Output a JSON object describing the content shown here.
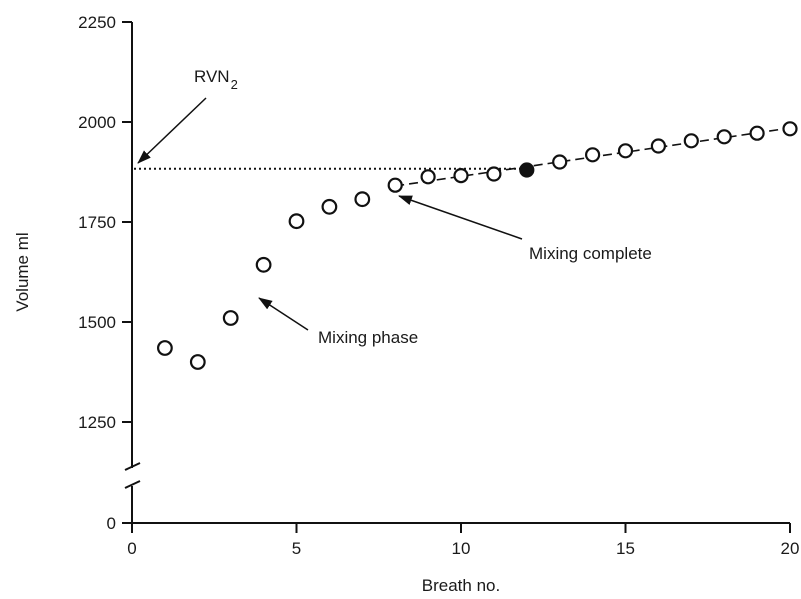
{
  "chart_data": {
    "type": "scatter",
    "title": "",
    "xlabel": "Breath no.",
    "ylabel": "Volume  ml",
    "xlim": [
      0,
      20
    ],
    "ylim_broken": {
      "bottom": 0,
      "top": [
        1150,
        2250
      ]
    },
    "x_ticks": [
      0,
      5,
      10,
      15,
      20
    ],
    "y_ticks": [
      0,
      1250,
      1500,
      1750,
      2000,
      2250
    ],
    "grid": false,
    "series": [
      {
        "marker": "open-circle",
        "x": [
          1,
          2,
          3,
          4,
          5,
          6,
          7,
          8,
          9,
          10,
          11,
          12,
          13,
          14,
          15,
          16,
          17,
          18,
          19,
          20
        ],
        "y": [
          1435,
          1400,
          1510,
          1643,
          1752,
          1788,
          1807,
          1842,
          1863,
          1866,
          1870,
          1880,
          1900,
          1918,
          1928,
          1940,
          1953,
          1963,
          1972,
          1983
        ],
        "filled_at_x": 12
      }
    ],
    "trend_line": {
      "style": "dashed",
      "x": [
        8,
        20
      ],
      "y": [
        1840,
        1985
      ]
    },
    "reference_line": {
      "style": "dotted",
      "y": 1883,
      "x": [
        0,
        12
      ]
    },
    "annotations": {
      "rv": {
        "text": "RVN",
        "subscript": "2"
      },
      "mixing_complete": "Mixing complete",
      "mixing_phase": "Mixing phase"
    }
  }
}
